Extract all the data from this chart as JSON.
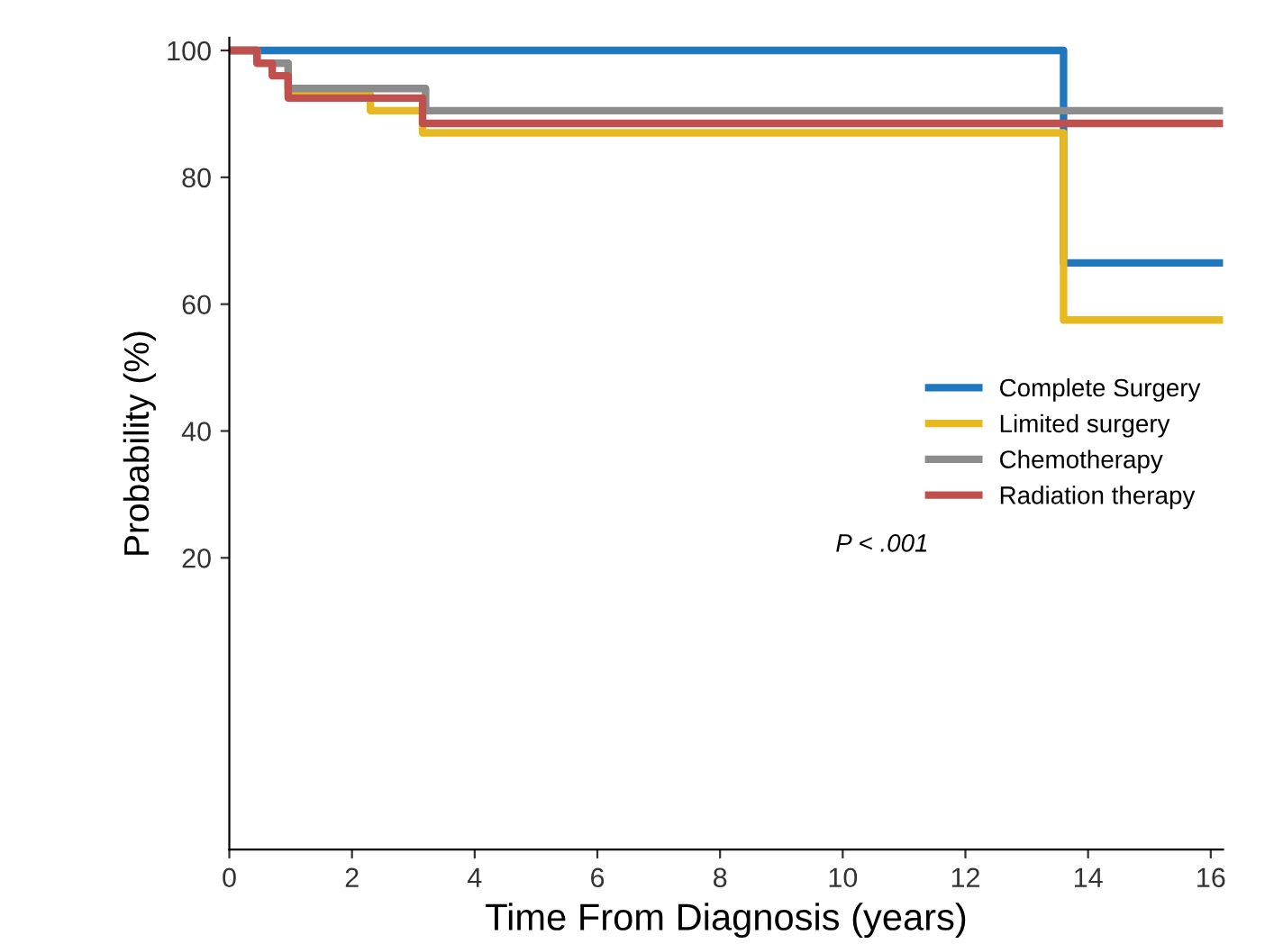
{
  "chart_data": {
    "type": "step",
    "xlabel": "Time From Diagnosis (years)",
    "ylabel": "Probability (%)",
    "xlim": [
      0,
      16.2
    ],
    "ylim": [
      -26,
      102
    ],
    "xticks": [
      0,
      2,
      4,
      6,
      8,
      10,
      12,
      14,
      16
    ],
    "yticks": [
      20,
      40,
      60,
      80,
      100
    ],
    "grid": false,
    "legend": "right",
    "line_style": "solid",
    "marker": "none",
    "annotations": [
      "P < .001"
    ],
    "series": [
      {
        "name": "Complete Surgery",
        "color": "#1f77c0",
        "x": [
          0,
          13.6,
          16.2
        ],
        "values": [
          100,
          66.5,
          66.5
        ]
      },
      {
        "name": "Limited surgery",
        "color": "#e8b820",
        "x": [
          0,
          0.45,
          0.96,
          2.3,
          3.15,
          13.6,
          16.2
        ],
        "values": [
          100,
          98,
          93,
          90.5,
          87,
          57.5,
          57.5
        ]
      },
      {
        "name": "Chemotherapy",
        "color": "#8c8c8c",
        "x": [
          0,
          0.45,
          0.96,
          3.2,
          16.2
        ],
        "values": [
          100,
          98,
          94,
          90.5,
          90.5
        ]
      },
      {
        "name": "Radiation therapy",
        "color": "#c0504d",
        "x": [
          0,
          0.45,
          0.7,
          0.96,
          3.15,
          16.2
        ],
        "values": [
          100,
          98,
          96,
          92.5,
          88.5,
          88.5
        ]
      }
    ]
  }
}
